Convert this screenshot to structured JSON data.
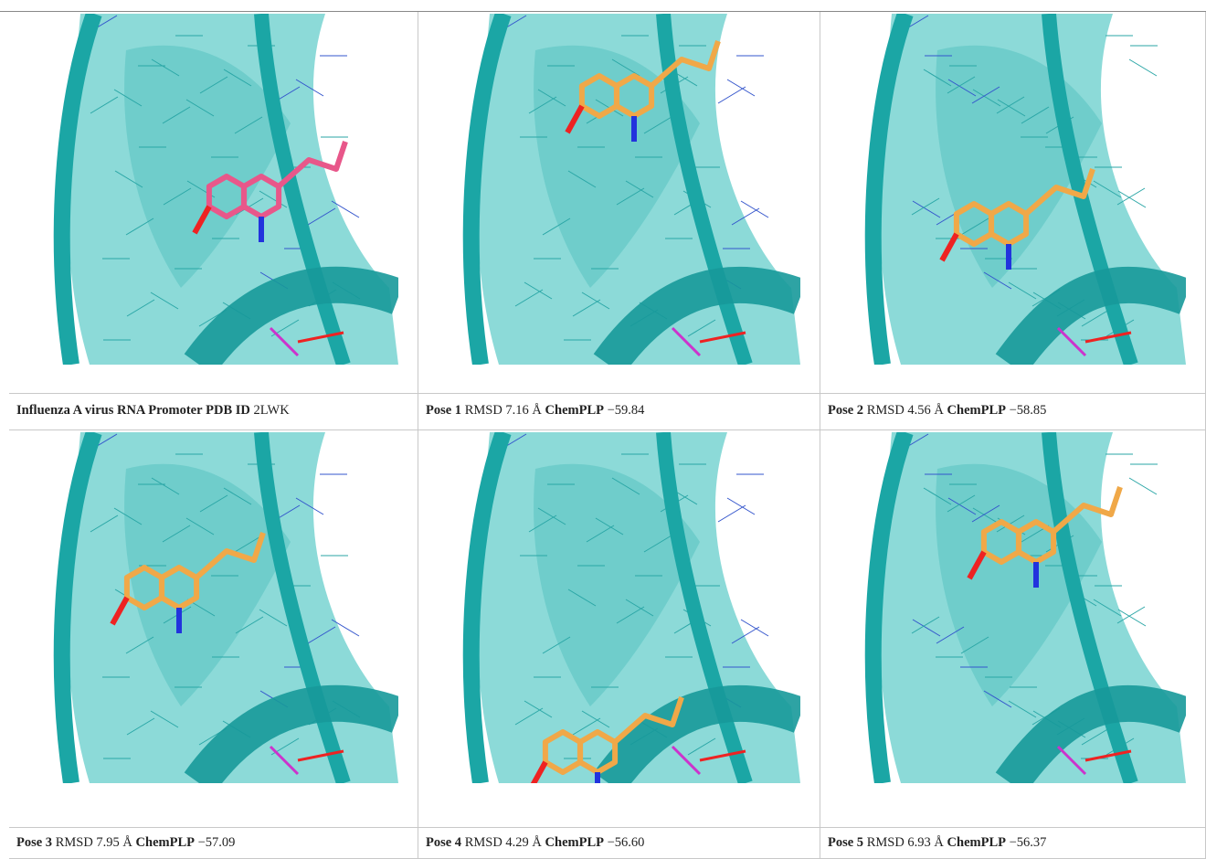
{
  "table": {
    "rows": [
      [
        {
          "title": "Influenza A virus RNA Promoter",
          "id_label": "PDB ID",
          "id": "2LWK"
        },
        {
          "pose": "Pose 1",
          "rmsd_label": "RMSD",
          "rmsd": "7.16 Å",
          "score_label": "ChemPLP",
          "score": "−59.84"
        },
        {
          "pose": "Pose 2",
          "rmsd_label": "RMSD",
          "rmsd": "4.56 Å",
          "score_label": "ChemPLP",
          "score": "−58.85"
        }
      ],
      [
        {
          "pose": "Pose 3",
          "rmsd_label": "RMSD",
          "rmsd": "7.95 Å",
          "score_label": "ChemPLP",
          "score": "−57.09"
        },
        {
          "pose": "Pose 4",
          "rmsd_label": "RMSD",
          "rmsd": "4.29 Å",
          "score_label": "ChemPLP",
          "score": "−56.60"
        },
        {
          "pose": "Pose 5",
          "rmsd_label": "RMSD",
          "rmsd": "6.93 Å",
          "score_label": "ChemPLP",
          "score": "−56.37"
        }
      ]
    ]
  }
}
